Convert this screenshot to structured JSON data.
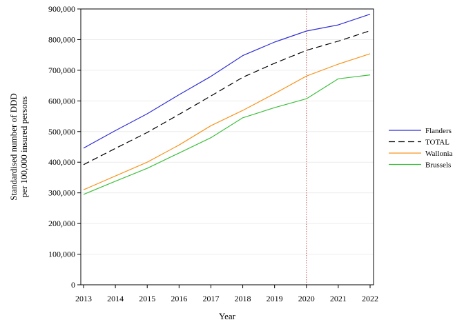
{
  "chart_data": {
    "type": "line",
    "xlabel": "Year",
    "ylabel": [
      "Standardised number of DDD",
      "per 100,000 insured persons"
    ],
    "x": [
      2013,
      2014,
      2015,
      2016,
      2017,
      2018,
      2019,
      2020,
      2021,
      2022
    ],
    "x_tick_labels": [
      "2013",
      "2014",
      "2015",
      "2016",
      "2017",
      "2018",
      "2019",
      "2020",
      "2021",
      "2022"
    ],
    "xlim": [
      2013,
      2022
    ],
    "ylim": [
      0,
      900000
    ],
    "y_ticks": [
      0,
      100000,
      200000,
      300000,
      400000,
      500000,
      600000,
      700000,
      800000,
      900000
    ],
    "y_tick_labels": [
      "0",
      "100,000",
      "200,000",
      "300,000",
      "400,000",
      "500,000",
      "600,000",
      "700,000",
      "800,000",
      "900,000"
    ],
    "grid": "horizontal",
    "legend_position": "right",
    "reference_line": {
      "x": 2020,
      "style": "dotted",
      "color": "#c0504d"
    },
    "series": [
      {
        "name": "Flanders",
        "color": "#2f2fd6",
        "dash": "solid",
        "values": [
          446000,
          503000,
          558000,
          620000,
          680000,
          748000,
          792000,
          828000,
          848000,
          883000
        ]
      },
      {
        "name": "TOTAL",
        "color": "#000000",
        "dash": "dashed",
        "values": [
          392000,
          445000,
          497000,
          556000,
          616000,
          677000,
          723000,
          765000,
          795000,
          829000
        ]
      },
      {
        "name": "Wallonia",
        "color": "#f7941d",
        "dash": "solid",
        "values": [
          310000,
          355000,
          400000,
          456000,
          519000,
          569000,
          624000,
          681000,
          720000,
          754000
        ]
      },
      {
        "name": "Brussels",
        "color": "#3fbf3f",
        "dash": "solid",
        "values": [
          295000,
          338000,
          380000,
          430000,
          480000,
          545000,
          578000,
          607000,
          672000,
          685000
        ]
      }
    ]
  }
}
